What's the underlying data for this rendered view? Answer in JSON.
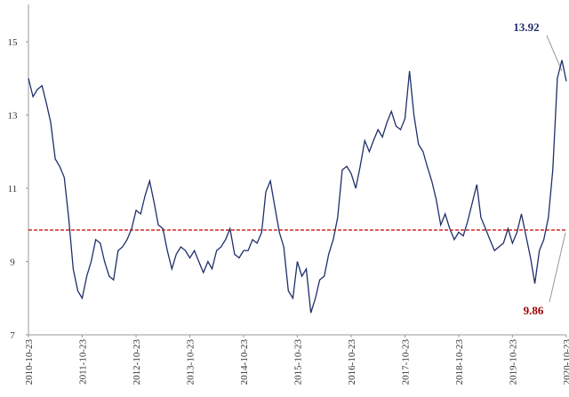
{
  "chart_data": {
    "type": "line",
    "x": [
      "2010-10-23",
      "2010-11-23",
      "2010-12-23",
      "2011-01-23",
      "2011-02-23",
      "2011-03-23",
      "2011-04-23",
      "2011-05-23",
      "2011-06-23",
      "2011-07-23",
      "2011-08-23",
      "2011-09-23",
      "2011-10-23",
      "2011-11-23",
      "2011-12-23",
      "2012-01-23",
      "2012-02-23",
      "2012-03-23",
      "2012-04-23",
      "2012-05-23",
      "2012-06-23",
      "2012-07-23",
      "2012-08-23",
      "2012-09-23",
      "2012-10-23",
      "2012-11-23",
      "2012-12-23",
      "2013-01-23",
      "2013-02-23",
      "2013-03-23",
      "2013-04-23",
      "2013-05-23",
      "2013-06-23",
      "2013-07-23",
      "2013-08-23",
      "2013-09-23",
      "2013-10-23",
      "2013-11-23",
      "2013-12-23",
      "2014-01-23",
      "2014-02-23",
      "2014-03-23",
      "2014-04-23",
      "2014-05-23",
      "2014-06-23",
      "2014-07-23",
      "2014-08-23",
      "2014-09-23",
      "2014-10-23",
      "2014-11-23",
      "2014-12-23",
      "2015-01-23",
      "2015-02-23",
      "2015-03-23",
      "2015-04-23",
      "2015-05-23",
      "2015-06-23",
      "2015-07-23",
      "2015-08-23",
      "2015-09-23",
      "2015-10-23",
      "2015-11-23",
      "2015-12-23",
      "2016-01-23",
      "2016-02-23",
      "2016-03-23",
      "2016-04-23",
      "2016-05-23",
      "2016-06-23",
      "2016-07-23",
      "2016-08-23",
      "2016-09-23",
      "2016-10-23",
      "2016-11-23",
      "2016-12-23",
      "2017-01-23",
      "2017-02-23",
      "2017-03-23",
      "2017-04-23",
      "2017-05-23",
      "2017-06-23",
      "2017-07-23",
      "2017-08-23",
      "2017-09-23",
      "2017-10-23",
      "2017-11-23",
      "2017-12-23",
      "2018-01-23",
      "2018-02-23",
      "2018-03-23",
      "2018-04-23",
      "2018-05-23",
      "2018-06-23",
      "2018-07-23",
      "2018-08-23",
      "2018-09-23",
      "2018-10-23",
      "2018-11-23",
      "2018-12-23",
      "2019-01-23",
      "2019-02-23",
      "2019-03-23",
      "2019-04-23",
      "2019-05-23",
      "2019-06-23",
      "2019-07-23",
      "2019-08-23",
      "2019-09-23",
      "2019-10-23",
      "2019-11-23",
      "2019-12-23",
      "2020-01-23",
      "2020-02-23",
      "2020-03-23",
      "2020-04-23",
      "2020-05-23",
      "2020-06-23",
      "2020-07-23",
      "2020-08-23",
      "2020-09-23",
      "2020-10-23"
    ],
    "series": [
      {
        "color": "#1f2f6b",
        "values": [
          14.0,
          13.5,
          13.7,
          13.8,
          13.3,
          12.8,
          11.8,
          11.6,
          11.3,
          10.2,
          8.8,
          8.2,
          8.0,
          8.6,
          9.0,
          9.6,
          9.5,
          9.0,
          8.6,
          8.5,
          9.3,
          9.4,
          9.6,
          9.9,
          10.4,
          10.3,
          10.8,
          11.2,
          10.6,
          10.0,
          9.9,
          9.3,
          8.8,
          9.2,
          9.4,
          9.3,
          9.1,
          9.3,
          9.0,
          8.7,
          9.0,
          8.8,
          9.3,
          9.4,
          9.6,
          9.9,
          9.2,
          9.1,
          9.3,
          9.3,
          9.6,
          9.5,
          9.8,
          10.9,
          11.2,
          10.5,
          9.8,
          9.4,
          8.2,
          8.0,
          9.0,
          8.6,
          8.8,
          7.6,
          8.0,
          8.5,
          8.6,
          9.2,
          9.6,
          10.2,
          11.5,
          11.6,
          11.4,
          11.0,
          11.6,
          12.3,
          12.0,
          12.3,
          12.6,
          12.4,
          12.8,
          13.1,
          12.7,
          12.6,
          12.9,
          14.2,
          13.0,
          12.2,
          12.0,
          11.6,
          11.2,
          10.7,
          10.0,
          10.3,
          9.9,
          9.6,
          9.8,
          9.7,
          10.1,
          10.6,
          11.1,
          10.2,
          9.9,
          9.6,
          9.3,
          9.4,
          9.5,
          9.9,
          9.5,
          9.8,
          10.3,
          9.7,
          9.1,
          8.4,
          9.3,
          9.6,
          10.2,
          11.5,
          14.0,
          14.5,
          13.92
        ]
      }
    ],
    "xlim": [
      "2010-10-23",
      "2020-10-23"
    ],
    "xticks": [
      "2010-10-23",
      "2011-10-23",
      "2012-10-23",
      "2013-10-23",
      "2014-10-23",
      "2015-10-23",
      "2016-10-23",
      "2017-10-23",
      "2018-10-23",
      "2019-10-23",
      "2020-10-23"
    ],
    "ylim": [
      7,
      16
    ],
    "yticks": [
      7,
      9,
      11,
      13,
      15
    ],
    "hline": {
      "value": 9.86,
      "label": "9.86",
      "color": "#c00000"
    },
    "last_label": "13.92"
  }
}
